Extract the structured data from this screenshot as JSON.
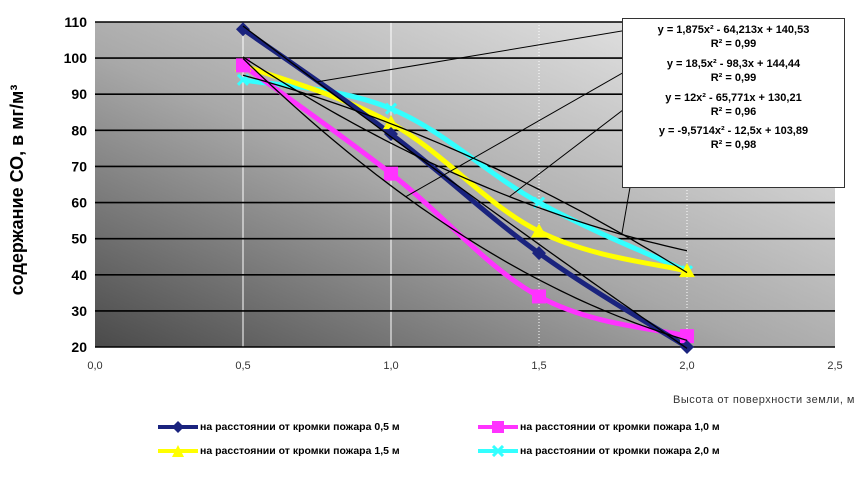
{
  "chart_data": {
    "type": "line",
    "xlabel": "Высота от поверхности земли, м",
    "ylabel": "содержание СО, в мг/м³",
    "xlim": [
      0,
      2.5
    ],
    "ylim": [
      20,
      110
    ],
    "xticks": [
      "0,0",
      "0,5",
      "1,0",
      "1,5",
      "2,0",
      "2,5"
    ],
    "yticks": [
      "20",
      "30",
      "40",
      "50",
      "60",
      "70",
      "80",
      "90",
      "100",
      "110"
    ],
    "grid": "horizontal",
    "legend_position": "bottom",
    "x": [
      0.5,
      1.0,
      1.5,
      2.0
    ],
    "series": [
      {
        "name": "на расстоянии от кромки пожара 0,5 м",
        "color": "#1a237e",
        "marker": "diamond",
        "values": [
          108,
          79,
          46,
          20
        ]
      },
      {
        "name": "на расстоянии от кромки пожара 1,0 м",
        "color": "#ff33ff",
        "marker": "square",
        "values": [
          98,
          68,
          34,
          23
        ]
      },
      {
        "name": "на расстоянии от кромки пожара 1,5 м",
        "color": "#ffff00",
        "marker": "triangle",
        "values": [
          98,
          82,
          52,
          41
        ]
      },
      {
        "name": "на расстоянии от кромки пожара 2,0 м",
        "color": "#33ffff",
        "marker": "x",
        "values": [
          94,
          86,
          60,
          41
        ]
      }
    ],
    "trendlines": [
      {
        "equation": "y = 1,875x² - 64,213x + 140,53",
        "r2": "R² = 0,99",
        "a": 1.875,
        "b": -64.213,
        "c": 140.53
      },
      {
        "equation": "y = 18,5x² - 98,3x + 144,44",
        "r2": "R² = 0,99",
        "a": 18.5,
        "b": -98.3,
        "c": 144.44
      },
      {
        "equation": "y = 12x² - 65,771x + 130,21",
        "r2": "R² = 0,96",
        "a": 12,
        "b": -65.771,
        "c": 130.21
      },
      {
        "equation": "y = -9,5714x² - 12,5x + 103,89",
        "r2": "R² = 0,98",
        "a": -9.5714,
        "b": -12.5,
        "c": 103.89
      }
    ]
  },
  "colors": {
    "trendline": "#000000",
    "gridline": "#000000",
    "vertical_grid": "#ffffff"
  }
}
